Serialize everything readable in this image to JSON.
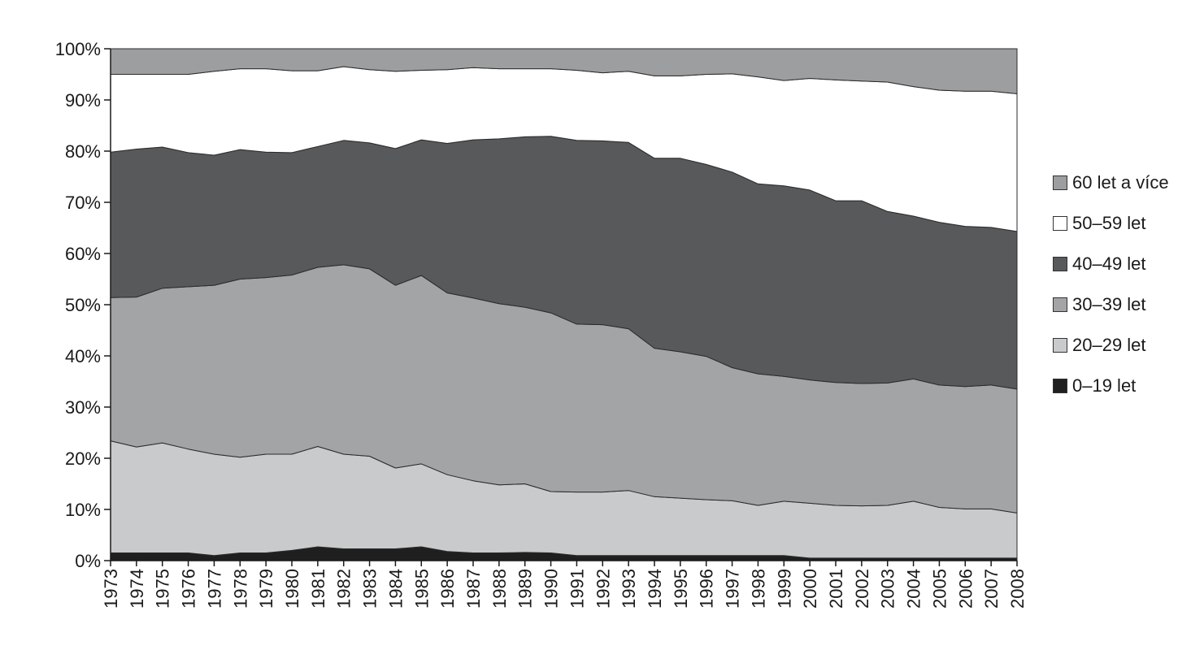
{
  "chart_data": {
    "type": "area",
    "stacked": true,
    "percent": true,
    "x": [
      1973,
      1974,
      1975,
      1976,
      1977,
      1978,
      1979,
      1980,
      1981,
      1982,
      1983,
      1984,
      1985,
      1986,
      1987,
      1988,
      1989,
      1990,
      1991,
      1992,
      1993,
      1994,
      1995,
      1996,
      1997,
      1998,
      1999,
      2000,
      2001,
      2002,
      2003,
      2004,
      2005,
      2006,
      2007,
      2008
    ],
    "ylim": [
      0,
      100
    ],
    "yticks": [
      "0%",
      "10%",
      "20%",
      "30%",
      "40%",
      "50%",
      "60%",
      "70%",
      "80%",
      "90%",
      "100%"
    ],
    "legend_position": "right",
    "series": [
      {
        "name": "0–19 let",
        "color": "#1f1f1f",
        "values": [
          1.5,
          1.5,
          1.5,
          1.5,
          1.0,
          1.5,
          1.5,
          2.0,
          2.7,
          2.3,
          2.3,
          2.3,
          2.7,
          1.8,
          1.5,
          1.5,
          1.6,
          1.5,
          1.0,
          1.0,
          1.0,
          1.0,
          1.0,
          1.0,
          1.0,
          1.0,
          1.0,
          0.5,
          0.5,
          0.5,
          0.5,
          0.5,
          0.5,
          0.5,
          0.5,
          0.5
        ]
      },
      {
        "name": "20–29 let",
        "color": "#c9cacb",
        "values": [
          21.9,
          20.7,
          21.5,
          20.3,
          19.8,
          18.7,
          19.3,
          18.8,
          19.6,
          18.5,
          18.1,
          15.8,
          16.2,
          15.0,
          14.1,
          13.3,
          13.4,
          12.0,
          12.4,
          12.4,
          12.7,
          11.5,
          11.2,
          10.9,
          10.7,
          9.8,
          10.6,
          10.7,
          10.3,
          10.2,
          10.3,
          11.1,
          9.9,
          9.6,
          9.6,
          8.8
        ]
      },
      {
        "name": "30–39 let",
        "color": "#a3a4a6",
        "values": [
          28.0,
          29.3,
          30.2,
          31.7,
          33.0,
          34.8,
          34.5,
          35.0,
          35.0,
          37.0,
          36.6,
          35.7,
          36.8,
          35.5,
          35.7,
          35.4,
          34.5,
          34.9,
          32.8,
          32.7,
          31.6,
          29.0,
          28.6,
          28.0,
          26.0,
          25.7,
          24.4,
          24.1,
          24.0,
          23.9,
          23.9,
          23.9,
          23.9,
          23.9,
          24.2,
          24.2
        ]
      },
      {
        "name": "40–49 let",
        "color": "#58595b",
        "values": [
          28.4,
          28.9,
          27.6,
          26.2,
          25.4,
          25.3,
          24.5,
          23.9,
          23.6,
          24.3,
          24.6,
          26.7,
          26.5,
          29.2,
          30.9,
          32.2,
          33.3,
          34.5,
          35.9,
          35.9,
          36.4,
          37.1,
          37.8,
          37.5,
          38.2,
          37.1,
          37.2,
          37.1,
          35.5,
          35.7,
          33.5,
          31.8,
          31.8,
          31.3,
          30.8,
          30.8
        ]
      },
      {
        "name": "50–59 let",
        "color": "#ffffff",
        "values": [
          15.2,
          14.6,
          14.2,
          15.3,
          16.4,
          15.8,
          16.3,
          16.0,
          14.8,
          14.4,
          14.3,
          15.1,
          13.6,
          14.4,
          14.1,
          13.7,
          13.3,
          13.2,
          13.7,
          13.3,
          13.9,
          16.1,
          16.1,
          17.6,
          19.2,
          20.9,
          20.6,
          21.8,
          23.6,
          23.4,
          25.3,
          25.3,
          25.8,
          26.4,
          26.6,
          26.9
        ]
      },
      {
        "name": "60 let a více",
        "color": "#9d9e9f",
        "values": [
          5.0,
          5.0,
          5.0,
          5.0,
          4.4,
          3.9,
          3.9,
          4.3,
          4.3,
          3.5,
          4.1,
          4.4,
          4.2,
          4.1,
          3.7,
          3.9,
          3.9,
          3.9,
          4.2,
          4.7,
          4.4,
          5.3,
          5.3,
          5.0,
          4.9,
          5.5,
          6.2,
          5.8,
          6.1,
          6.3,
          6.5,
          7.4,
          8.1,
          8.3,
          8.3,
          8.8
        ]
      }
    ]
  }
}
